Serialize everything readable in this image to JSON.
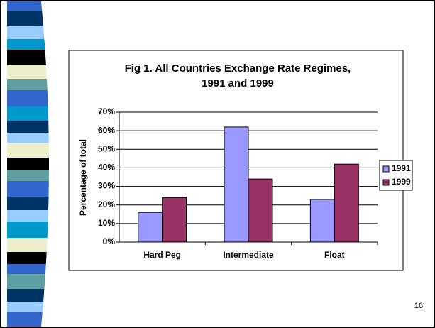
{
  "chart_data": {
    "type": "bar",
    "title": "Fig 1. All Countries Exchange Rate Regimes, 1991 and 1999",
    "y_label": "Percentage of total",
    "categories": [
      "Hard Peg",
      "Intermediate",
      "Float"
    ],
    "series": [
      {
        "name": "1991",
        "color": "#9999ff",
        "values": [
          16,
          62,
          23
        ]
      },
      {
        "name": "1999",
        "color": "#993366",
        "values": [
          24,
          34,
          42
        ]
      }
    ],
    "ylim": [
      0,
      70
    ],
    "yticks": [
      {
        "value": 0,
        "label": "0%"
      },
      {
        "value": 10,
        "label": "10%"
      },
      {
        "value": 20,
        "label": "20%"
      },
      {
        "value": 30,
        "label": "30%"
      },
      {
        "value": 40,
        "label": "40%"
      },
      {
        "value": 50,
        "label": "50%"
      },
      {
        "value": 60,
        "label": "60%"
      },
      {
        "value": 70,
        "label": "70%"
      }
    ],
    "grid": true,
    "legend": "right"
  },
  "slide_number": "16"
}
